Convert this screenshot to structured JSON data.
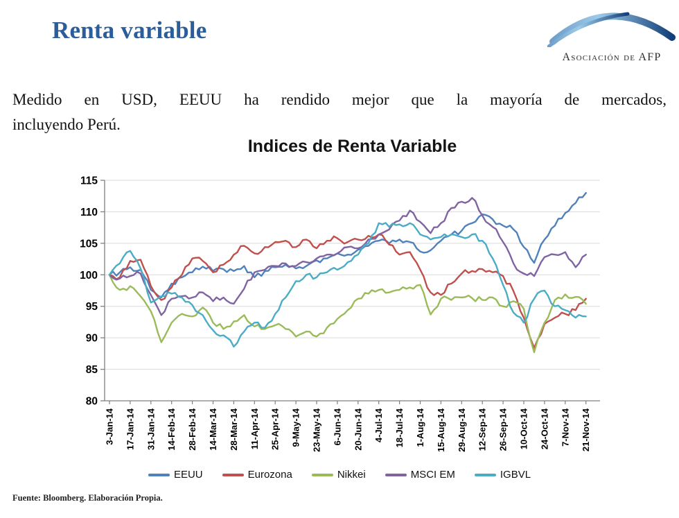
{
  "slide": {
    "title": "Renta variable",
    "title_color": "#2B5D9B",
    "body_line1": "Medido en USD, EEUU ha rendido mejor que la mayoría de mercados,",
    "body_line2": "incluyendo Perú.",
    "footer": "Fuente: Bloomberg. Elaboración Propia.",
    "background": "#FFFFFF"
  },
  "logo": {
    "text": "Asociación de AFP",
    "arc_colors": [
      "#6E9FC9",
      "#9CCAE8",
      "#123F78"
    ]
  },
  "chart_data": {
    "type": "line",
    "title": "Indices de Renta Variable",
    "xlabel": "",
    "ylabel": "",
    "ylim": [
      80,
      115
    ],
    "y_ticks": [
      80,
      85,
      90,
      95,
      100,
      105,
      110,
      115
    ],
    "grid": true,
    "legend_position": "bottom",
    "axis_color": "#7f7f7f",
    "grid_color": "#d9d9d9",
    "tick_label_color": "#000000",
    "x_tick_labels": [
      "3-Jan-14",
      "17-Jan-14",
      "31-Jan-14",
      "14-Feb-14",
      "28-Feb-14",
      "14-Mar-14",
      "28-Mar-14",
      "11-Apr-14",
      "25-Apr-14",
      "9-May-14",
      "23-May-14",
      "6-Jun-14",
      "20-Jun-14",
      "4-Jul-14",
      "18-Jul-14",
      "1-Aug-14",
      "15-Aug-14",
      "29-Aug-14",
      "12-Sep-14",
      "26-Sep-14",
      "10-Oct-14",
      "24-Oct-14",
      "7-Nov-14",
      "21-Nov-14"
    ],
    "sampling": "weekly values (index 100 = 3-Jan-14); x ticks fall on every second sample",
    "series": [
      {
        "name": "EEUU",
        "color": "#4F81BD",
        "values": [
          100,
          100.4,
          101.2,
          100.8,
          97.6,
          96.4,
          98.6,
          99.6,
          100.4,
          101.3,
          100.6,
          100.9,
          100.6,
          101.4,
          99.6,
          100.6,
          101.2,
          101.6,
          101.0,
          101.4,
          102.3,
          102.6,
          103.4,
          103.2,
          104.0,
          104.6,
          105.4,
          105.0,
          105.6,
          105.2,
          103.7,
          103.9,
          105.4,
          106.4,
          107.0,
          108.2,
          109.6,
          108.8,
          107.8,
          107.2,
          104.4,
          101.9,
          105.6,
          107.8,
          109.8,
          111.4,
          113.0
        ]
      },
      {
        "name": "Eurozona",
        "color": "#C0504D",
        "values": [
          100,
          99.6,
          102.2,
          102.4,
          98.2,
          96.0,
          98.0,
          100.0,
          102.6,
          102.2,
          100.4,
          101.6,
          103.2,
          104.6,
          103.4,
          104.4,
          105.2,
          105.4,
          104.4,
          105.6,
          104.2,
          105.4,
          105.8,
          105.2,
          105.6,
          106.2,
          106.4,
          104.8,
          103.2,
          103.6,
          100.8,
          97.2,
          96.8,
          98.6,
          100.2,
          100.6,
          100.9,
          100.4,
          99.8,
          97.4,
          93.2,
          88.4,
          92.2,
          93.2,
          93.8,
          94.4,
          96.2
        ]
      },
      {
        "name": "Nikkei",
        "color": "#9BBB59",
        "values": [
          100,
          97.6,
          98.2,
          96.6,
          94.2,
          89.3,
          92.4,
          93.8,
          93.4,
          94.8,
          92.4,
          91.4,
          92.6,
          93.6,
          91.8,
          91.4,
          92.0,
          91.4,
          90.2,
          91.0,
          90.2,
          91.6,
          93.0,
          94.4,
          96.2,
          97.0,
          97.6,
          97.2,
          97.6,
          98.0,
          98.4,
          93.7,
          96.2,
          96.0,
          96.4,
          96.3,
          96.0,
          96.4,
          95.0,
          95.8,
          94.6,
          87.7,
          92.4,
          96.0,
          96.9,
          96.5,
          95.4
        ]
      },
      {
        "name": "MSCI EM",
        "color": "#8064A2",
        "values": [
          100,
          99.4,
          99.8,
          100.2,
          96.8,
          93.6,
          96.2,
          96.6,
          96.4,
          97.2,
          95.8,
          96.4,
          95.4,
          97.8,
          100.4,
          100.8,
          101.4,
          101.8,
          101.4,
          102.0,
          102.6,
          103.2,
          103.4,
          104.4,
          104.2,
          105.6,
          106.4,
          107.2,
          108.6,
          110.2,
          108.4,
          106.6,
          108.2,
          110.6,
          111.6,
          112.2,
          109.4,
          107.6,
          105.2,
          101.8,
          100.2,
          99.8,
          102.8,
          103.2,
          103.6,
          101.2,
          103.2
        ]
      },
      {
        "name": "IGBVL",
        "color": "#4BACC6",
        "values": [
          100,
          101.8,
          103.8,
          101.0,
          95.6,
          96.6,
          97.0,
          96.4,
          95.2,
          93.6,
          91.2,
          90.4,
          88.6,
          91.0,
          92.4,
          91.6,
          93.8,
          96.4,
          99.0,
          100.0,
          99.6,
          100.4,
          100.8,
          102.0,
          103.2,
          105.0,
          108.2,
          107.6,
          108.0,
          108.2,
          106.4,
          105.6,
          106.0,
          106.4,
          106.0,
          106.4,
          105.4,
          102.6,
          98.4,
          94.0,
          92.4,
          96.2,
          97.5,
          95.0,
          94.4,
          93.2,
          93.4
        ]
      }
    ]
  }
}
